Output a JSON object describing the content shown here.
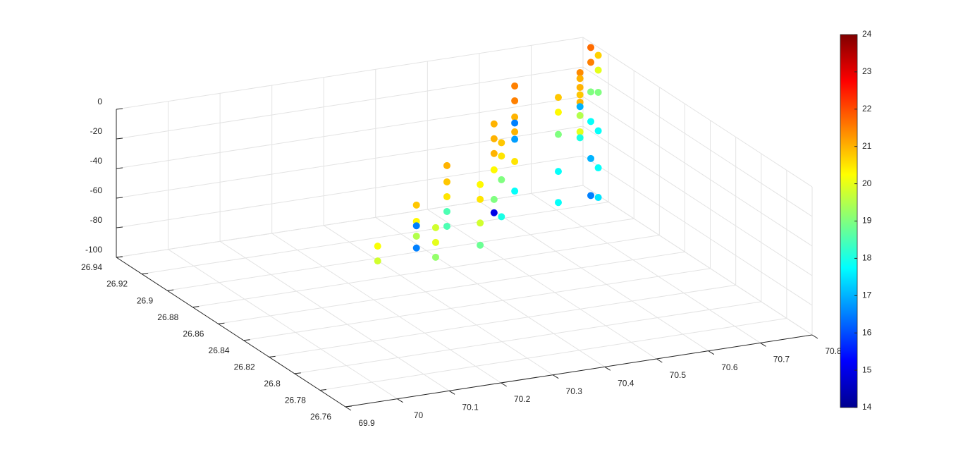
{
  "chart_data": {
    "type": "scatter3",
    "x": [
      70.788,
      70.788,
      70.788,
      70.788,
      70.788,
      70.788,
      70.795,
      70.795,
      70.795,
      70.795,
      70.795,
      70.795,
      70.75,
      70.75,
      70.75,
      70.75,
      70.75,
      70.75,
      70.75,
      70.75,
      70.75,
      70.664,
      70.664,
      70.664,
      70.664,
      70.664,
      70.602,
      70.602,
      70.602,
      70.602,
      70.602,
      70.602,
      70.602,
      70.602,
      70.518,
      70.518,
      70.518,
      70.518,
      70.518,
      70.518,
      70.52,
      70.52,
      70.52,
      70.52,
      70.447,
      70.447,
      70.447,
      70.447,
      70.405,
      70.405,
      70.405,
      70.405,
      70.405,
      70.317,
      70.317,
      70.317,
      70.302,
      70.302,
      70.302,
      70.302,
      70.302,
      70.161,
      70.161
    ],
    "y": [
      26.929,
      26.929,
      26.929,
      26.929,
      26.929,
      26.929,
      26.926,
      26.926,
      26.926,
      26.926,
      26.926,
      26.926,
      26.922,
      26.922,
      26.922,
      26.922,
      26.922,
      26.922,
      26.922,
      26.922,
      26.922,
      26.904,
      26.904,
      26.904,
      26.904,
      26.904,
      26.913,
      26.913,
      26.913,
      26.913,
      26.913,
      26.913,
      26.913,
      26.913,
      26.895,
      26.895,
      26.895,
      26.895,
      26.895,
      26.895,
      26.89,
      26.89,
      26.89,
      26.89,
      26.877,
      26.877,
      26.877,
      26.877,
      26.886,
      26.886,
      26.886,
      26.886,
      26.886,
      26.859,
      26.859,
      26.859,
      26.868,
      26.868,
      26.868,
      26.868,
      26.868,
      26.841,
      26.841
    ],
    "z": [
      0,
      -10,
      -30,
      -50,
      -75,
      -100,
      -4,
      -14,
      -29,
      -55,
      -80,
      -100,
      -11,
      -15,
      -21,
      -26,
      -31,
      -34,
      -40,
      -51,
      -55,
      -13,
      -23,
      -38,
      -63,
      -84,
      -7,
      -17,
      -28,
      -32,
      -38,
      -43,
      -58,
      -78,
      -18,
      -28,
      -38,
      -49,
      -69,
      -78,
      -28,
      -37,
      -53,
      -78,
      -45,
      -55,
      -71,
      -86,
      -35,
      -46,
      -56,
      -66,
      -76,
      -57,
      -67,
      -77,
      -46,
      -57,
      -60,
      -67,
      -75,
      -51,
      -61
    ],
    "c": [
      21.7,
      21.5,
      19,
      17.8,
      17,
      16.5,
      20.7,
      20,
      19,
      17.8,
      17.8,
      17.5,
      21.4,
      21,
      21,
      20.8,
      21,
      17,
      19.5,
      20,
      18,
      20.8,
      20.3,
      19,
      17.8,
      17.8,
      21.5,
      21.5,
      21,
      16.5,
      21,
      16.8,
      20.5,
      17.8,
      21,
      21,
      21,
      20.3,
      19,
      15,
      20.8,
      20.5,
      19,
      18,
      20.3,
      20.5,
      19.8,
      18.8,
      21,
      20.8,
      20.5,
      18.5,
      18.5,
      19.8,
      20,
      19.2,
      20.8,
      20.3,
      16.5,
      19.5,
      16.5,
      20.2,
      19.8
    ],
    "colormap": "jet",
    "xlim": [
      69.9,
      70.8
    ],
    "xticks": [
      69.9,
      70,
      70.1,
      70.2,
      70.3,
      70.4,
      70.5,
      70.6,
      70.7,
      70.8
    ],
    "ylim": [
      26.76,
      26.94
    ],
    "yticks": [
      26.76,
      26.78,
      26.8,
      26.82,
      26.84,
      26.86,
      26.88,
      26.9,
      26.92,
      26.94
    ],
    "zlim": [
      -100,
      0
    ],
    "zticks": [
      -100,
      -80,
      -60,
      -40,
      -20,
      0
    ],
    "clim": [
      14,
      24
    ],
    "cticks": [
      14,
      15,
      16,
      17,
      18,
      19,
      20,
      21,
      22,
      23,
      24
    ],
    "grid": true
  }
}
